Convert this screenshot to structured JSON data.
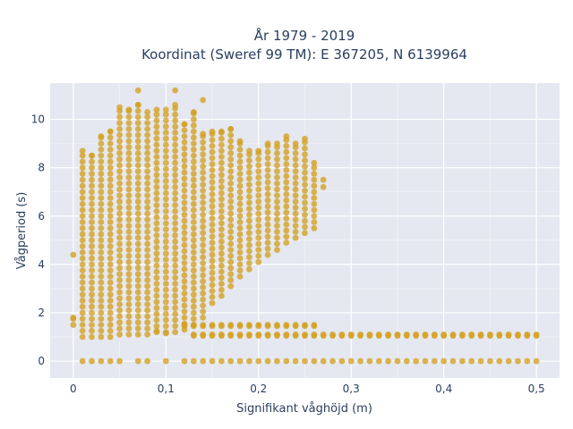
{
  "chart_data": {
    "type": "scatter",
    "title_line1": "År 1979 - 2019",
    "title_line2": "Koordinat (Sweref 99 TM): E 367205, N 6139964",
    "xlabel": "Signifikant våghöjd (m)",
    "ylabel": "Vågperiod (s)",
    "xlim": [
      -0.025,
      0.525
    ],
    "ylim": [
      -0.7,
      11.5
    ],
    "x_ticks": [
      0,
      0.1,
      0.2,
      0.3,
      0.4,
      0.5
    ],
    "x_tick_labels": [
      "0",
      "0,1",
      "0,2",
      "0,3",
      "0,4",
      "0,5"
    ],
    "y_ticks": [
      0,
      2,
      4,
      6,
      8,
      10
    ],
    "y_tick_labels": [
      "0",
      "2",
      "4",
      "6",
      "8",
      "10"
    ],
    "grid": true,
    "marker_color": "#d4a020",
    "plot_bg": "#e5e8f0",
    "grid_color": "#ffffff",
    "text_color": "#2a3f5f",
    "x_step": 0.01,
    "main_columns": [
      {
        "x": 0.0,
        "ymin": 1.5,
        "ymax": 1.8
      },
      {
        "x": 0.01,
        "ymin": 1.0,
        "ymax": 8.7
      },
      {
        "x": 0.02,
        "ymin": 1.0,
        "ymax": 8.5
      },
      {
        "x": 0.03,
        "ymin": 1.0,
        "ymax": 9.3
      },
      {
        "x": 0.04,
        "ymin": 1.0,
        "ymax": 9.5
      },
      {
        "x": 0.05,
        "ymin": 1.1,
        "ymax": 10.5
      },
      {
        "x": 0.06,
        "ymin": 1.1,
        "ymax": 10.4
      },
      {
        "x": 0.07,
        "ymin": 1.1,
        "ymax": 10.6
      },
      {
        "x": 0.08,
        "ymin": 1.1,
        "ymax": 10.3
      },
      {
        "x": 0.09,
        "ymin": 1.2,
        "ymax": 10.4
      },
      {
        "x": 0.1,
        "ymin": 1.2,
        "ymax": 10.4
      },
      {
        "x": 0.11,
        "ymin": 1.2,
        "ymax": 10.6
      },
      {
        "x": 0.12,
        "ymin": 1.3,
        "ymax": 9.8
      },
      {
        "x": 0.13,
        "ymin": 1.5,
        "ymax": 10.3
      },
      {
        "x": 0.14,
        "ymin": 1.8,
        "ymax": 9.4
      },
      {
        "x": 0.15,
        "ymin": 2.4,
        "ymax": 9.5
      },
      {
        "x": 0.16,
        "ymin": 2.7,
        "ymax": 9.5
      },
      {
        "x": 0.17,
        "ymin": 3.1,
        "ymax": 9.6
      },
      {
        "x": 0.18,
        "ymin": 3.5,
        "ymax": 9.1
      },
      {
        "x": 0.19,
        "ymin": 3.8,
        "ymax": 8.7
      },
      {
        "x": 0.2,
        "ymin": 4.1,
        "ymax": 8.7
      },
      {
        "x": 0.21,
        "ymin": 4.4,
        "ymax": 9.0
      },
      {
        "x": 0.22,
        "ymin": 4.6,
        "ymax": 9.0
      },
      {
        "x": 0.23,
        "ymin": 4.9,
        "ymax": 9.3
      },
      {
        "x": 0.24,
        "ymin": 5.1,
        "ymax": 9.0
      },
      {
        "x": 0.25,
        "ymin": 5.3,
        "ymax": 9.2
      },
      {
        "x": 0.26,
        "ymin": 5.5,
        "ymax": 8.2
      }
    ],
    "outliers": [
      {
        "x": 0.0,
        "y": 4.4
      },
      {
        "x": 0.07,
        "y": 11.2
      },
      {
        "x": 0.11,
        "y": 11.2
      },
      {
        "x": 0.14,
        "y": 10.8
      },
      {
        "x": 0.27,
        "y": 7.5
      },
      {
        "x": 0.27,
        "y": 7.2
      },
      {
        "x": 0.1,
        "y": 1.15
      },
      {
        "x": 0.09,
        "y": 1.25
      }
    ],
    "band_low": {
      "y_values": [
        1.05,
        1.1
      ],
      "x_start": 0.13,
      "x_end": 0.5
    },
    "band_mid": {
      "y_values": [
        1.45,
        1.5
      ],
      "x_start": 0.12,
      "x_end": 0.26
    },
    "zero_row": {
      "y": 0,
      "x_values": [
        0.01,
        0.02,
        0.03,
        0.04,
        0.05,
        0.07,
        0.08,
        0.1,
        0.12,
        0.13,
        0.14,
        0.15,
        0.16,
        0.17,
        0.18,
        0.19,
        0.2,
        0.21,
        0.22,
        0.23,
        0.24,
        0.25,
        0.26,
        0.27,
        0.28,
        0.29,
        0.3,
        0.31,
        0.32,
        0.33,
        0.34,
        0.35,
        0.36,
        0.37,
        0.38,
        0.39,
        0.4,
        0.41,
        0.42,
        0.43,
        0.44,
        0.45,
        0.46,
        0.47,
        0.48,
        0.49,
        0.5
      ]
    }
  }
}
